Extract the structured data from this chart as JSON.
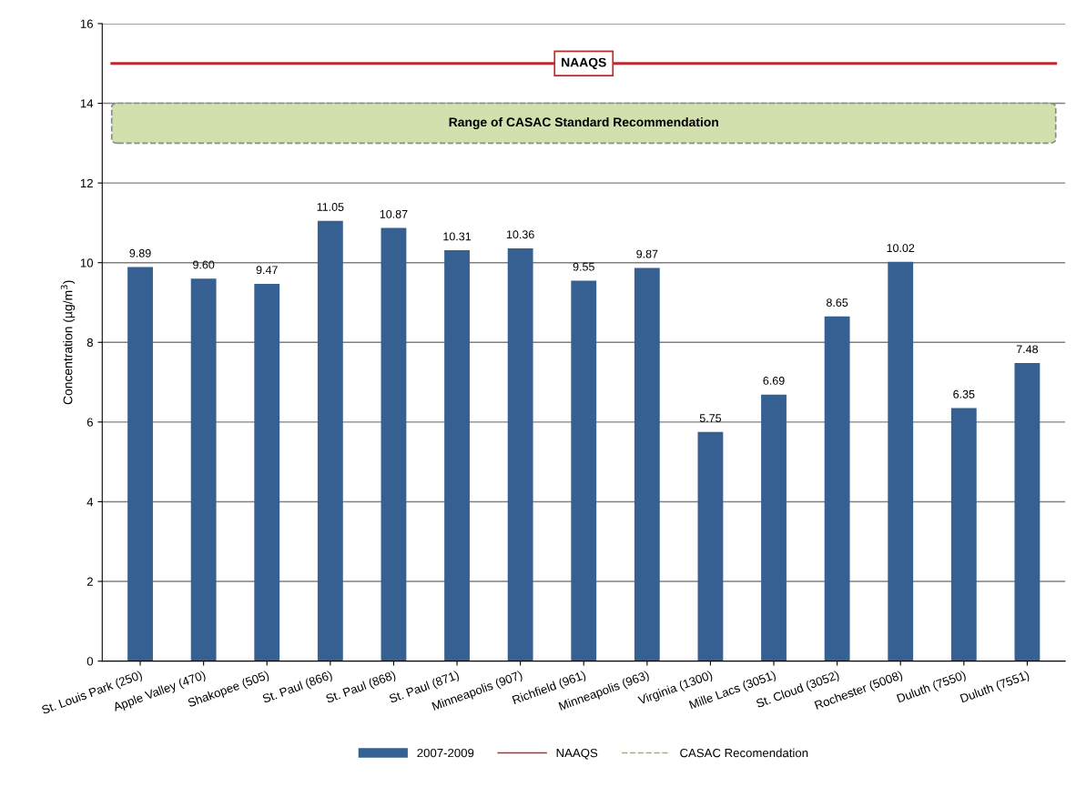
{
  "chart_data": {
    "type": "bar",
    "ylabel": "Concentration (µg/m$^{3}$)",
    "categories": [
      "St. Louis Park (250)",
      "Apple Valley (470)",
      "Shakopee (505)",
      "St. Paul (866)",
      "St. Paul (868)",
      "St. Paul (871)",
      "Minneapolis (907)",
      "Richfield (961)",
      "Minneapolis (963)",
      "Virginia (1300)",
      "Mille Lacs (3051)",
      "St. Cloud (3052)",
      "Rochester (5008)",
      "Duluth (7550)",
      "Duluth (7551)"
    ],
    "series": [
      {
        "name": "2007-2009",
        "color": "#376092",
        "values": [
          9.89,
          9.6,
          9.47,
          11.05,
          10.87,
          10.31,
          10.36,
          9.55,
          9.87,
          5.75,
          6.69,
          8.65,
          10.02,
          6.35,
          7.48
        ]
      },
      {
        "name": "CASAC Recomendation",
        "type": "line",
        "color": "#9bbb59",
        "line_style": "dashed",
        "values": [
          null,
          null,
          null,
          null,
          null,
          null,
          null,
          null,
          null,
          null,
          null,
          null,
          null,
          null,
          null
        ]
      }
    ],
    "value_labels": [
      "9.89",
      "9.60",
      "9.47",
      "11.05",
      "10.87",
      "10.31",
      "10.36",
      "9.55",
      "9.87",
      "5.75",
      "6.69",
      "8.65",
      "10.02",
      "6.35",
      "7.48"
    ],
    "ref_lines": [
      {
        "axis": "y",
        "value": 15,
        "label": "NAAQS",
        "color": "#c0282d",
        "line_style": "solid"
      }
    ],
    "bands": [
      {
        "axis": "y",
        "from": 13,
        "to": 14,
        "label": "Range of CASAC Standard Recommendation",
        "color": "#d1e0ad"
      }
    ],
    "ylim": [
      0,
      16
    ],
    "yticks": [
      0,
      2,
      4,
      6,
      8,
      10,
      12,
      14,
      16
    ],
    "grid": "y",
    "legend": "bottom"
  }
}
